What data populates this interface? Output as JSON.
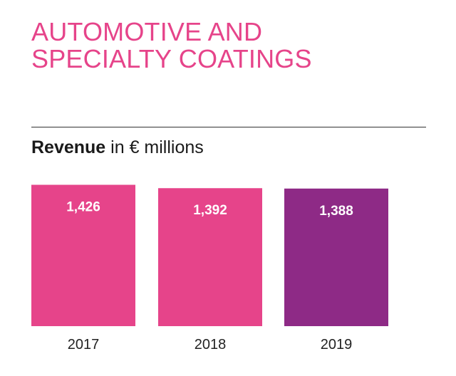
{
  "header": {
    "title_line1": "AUTOMOTIVE AND",
    "title_line2": "SPECIALTY COATINGS"
  },
  "chart_heading": {
    "bold": "Revenue",
    "rest": "in € millions"
  },
  "colors": {
    "title": "#e6448a",
    "bar_primary": "#e6448a",
    "bar_highlight": "#8e2a86"
  },
  "chart_data": {
    "type": "bar",
    "title": "Revenue in € millions",
    "categories": [
      "2017",
      "2018",
      "2019"
    ],
    "values": [
      1426,
      1392,
      1388
    ],
    "value_labels": [
      "1,426",
      "1,392",
      "1,388"
    ],
    "bar_colors": [
      "#e6448a",
      "#e6448a",
      "#8e2a86"
    ],
    "grid": false,
    "legend": "none"
  }
}
